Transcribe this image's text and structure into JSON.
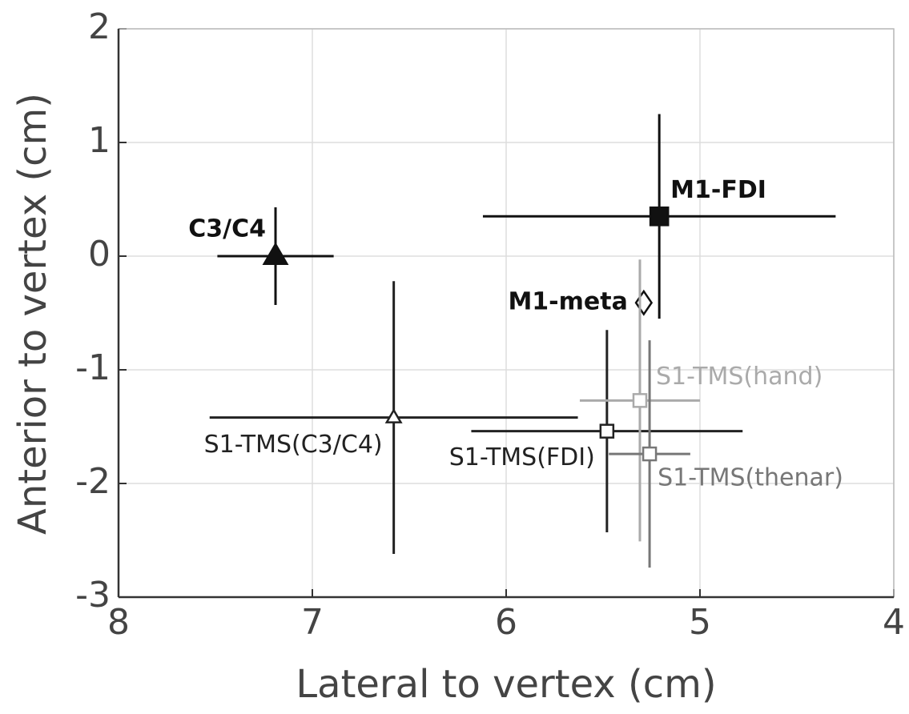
{
  "chart_data": {
    "type": "scatter",
    "xlabel": "Lateral to vertex (cm)",
    "ylabel": "Anterior to vertex (cm)",
    "xlim": [
      8,
      4
    ],
    "xticks": [
      8,
      7,
      6,
      5,
      4
    ],
    "ylim": [
      -3,
      2
    ],
    "yticks": [
      2,
      1,
      0,
      -1,
      -2,
      -3
    ],
    "grid": true,
    "series": [
      {
        "name": "C3/C4",
        "color": "#111111",
        "marker": "triangle",
        "filled": true,
        "bold": true,
        "x": [
          7.19
        ],
        "y": [
          0
        ],
        "xerr": [
          0.3
        ],
        "yerr": [
          0.43
        ]
      },
      {
        "name": "M1-FDI",
        "color": "#111111",
        "marker": "square",
        "filled": true,
        "bold": true,
        "x": [
          5.21
        ],
        "y": [
          0.35
        ],
        "xerr": [
          0.91
        ],
        "yerr": [
          0.9
        ]
      },
      {
        "name": "M1-meta",
        "color": "#111111",
        "marker": "diamond",
        "filled": false,
        "bold": true,
        "x": [
          5.29
        ],
        "y": [
          -0.41
        ]
      },
      {
        "name": "S1-TMS(C3/C4)",
        "color": "#222222",
        "marker": "triangle",
        "filled": false,
        "bold": false,
        "x": [
          6.58
        ],
        "y": [
          -1.42
        ],
        "xerr": [
          0.95
        ],
        "yerr": [
          1.2
        ]
      },
      {
        "name": "S1-TMS(FDI)",
        "color": "#222222",
        "marker": "crosssquare",
        "filled": false,
        "bold": false,
        "x": [
          5.48
        ],
        "y": [
          -1.54
        ],
        "xerr": [
          0.7
        ],
        "yerr": [
          0.89
        ]
      },
      {
        "name": "S1-TMS(hand)",
        "color": "#aaaaaa",
        "marker": "crosssquare",
        "filled": false,
        "bold": false,
        "x": [
          5.31
        ],
        "y": [
          -1.27
        ],
        "xerr": [
          0.31
        ],
        "yerr": [
          1.24
        ]
      },
      {
        "name": "S1-TMS(thenar)",
        "color": "#777777",
        "marker": "crosssquare",
        "filled": false,
        "bold": false,
        "x": [
          5.26
        ],
        "y": [
          -1.74
        ],
        "xerr": [
          0.21
        ],
        "yerr": [
          1.0
        ]
      }
    ]
  }
}
